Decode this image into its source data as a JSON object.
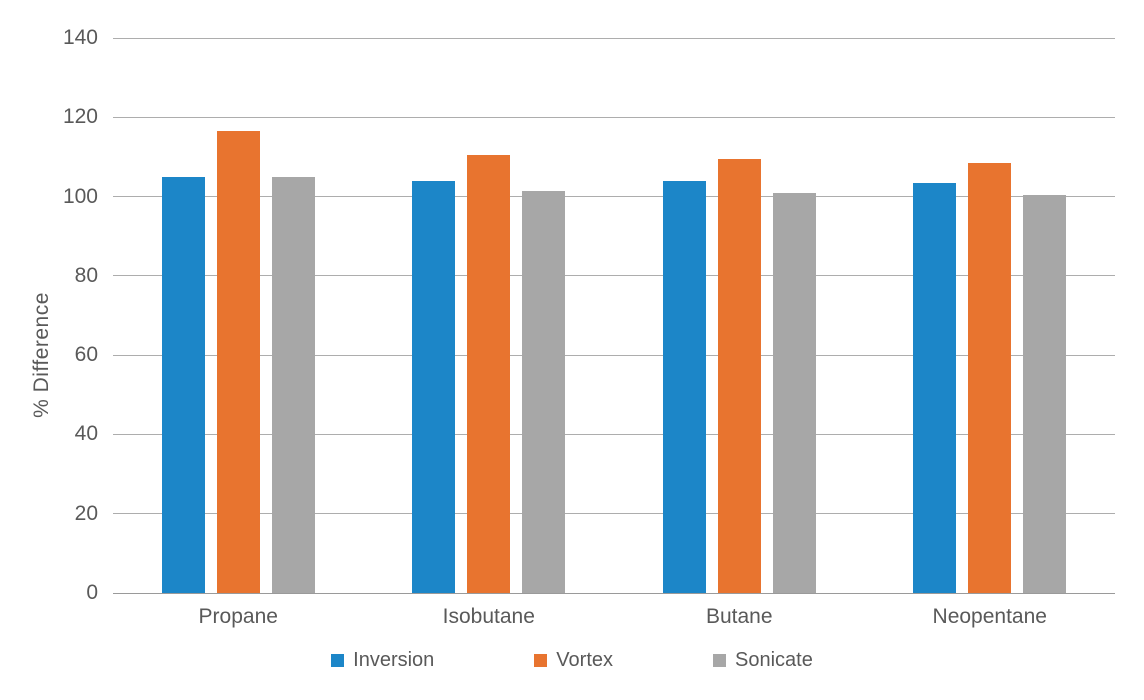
{
  "chart_data": {
    "type": "bar",
    "title": "",
    "xlabel": "",
    "ylabel": "% Difference",
    "ylim": [
      0,
      140
    ],
    "ytick_interval": 20,
    "grid": true,
    "legend_position": "bottom",
    "background_color": "#ffffff",
    "text_color": "#595959",
    "gridline_color": "#adadad",
    "categories": [
      "Propane",
      "Isobutane",
      "Butane",
      "Neopentane"
    ],
    "series": [
      {
        "name": "Inversion",
        "color": "#1c86c8",
        "values": [
          105,
          104,
          104,
          103.5
        ]
      },
      {
        "name": "Vortex",
        "color": "#e8742f",
        "values": [
          116.5,
          110.5,
          109.5,
          108.5
        ]
      },
      {
        "name": "Sonicate",
        "color": "#a7a7a7",
        "values": [
          105,
          101.5,
          101,
          100.5
        ]
      }
    ]
  }
}
